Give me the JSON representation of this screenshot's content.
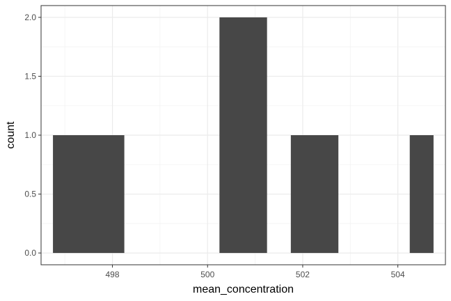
{
  "chart_data": {
    "type": "bar",
    "title": "",
    "xlabel": "mean_concentration",
    "ylabel": "count",
    "xlim": [
      496.5,
      505.0
    ],
    "ylim": [
      -0.1,
      2.1
    ],
    "x_ticks": [
      498,
      500,
      502,
      504
    ],
    "x_tick_labels": [
      "498",
      "500",
      "502",
      "504"
    ],
    "y_ticks": [
      0.0,
      0.5,
      1.0,
      1.5,
      2.0
    ],
    "y_tick_labels": [
      "0.0",
      "0.5",
      "1.0",
      "1.5",
      "2.0"
    ],
    "grid": true,
    "bins": [
      {
        "x0": 496.75,
        "x1": 498.25,
        "count": 1
      },
      {
        "x0": 500.25,
        "x1": 501.25,
        "count": 2
      },
      {
        "x0": 501.75,
        "x1": 502.75,
        "count": 1
      },
      {
        "x0": 504.25,
        "x1": 504.75,
        "count": 1
      }
    ],
    "colors": {
      "bar": "#474747",
      "panel_border": "#333333",
      "grid_major": "#ebebeb",
      "grid_minor": "#f3f3f3",
      "tick_mark": "#333333"
    }
  }
}
